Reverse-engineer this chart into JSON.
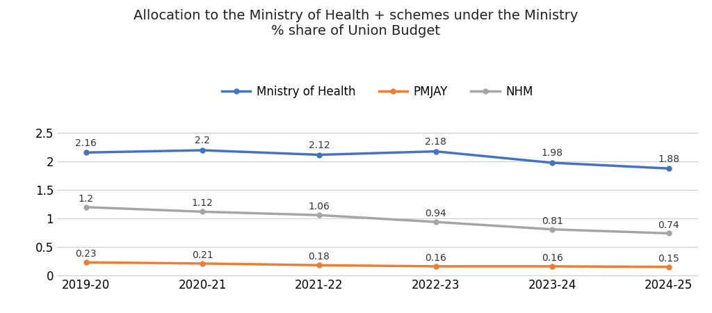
{
  "title_line1": "Allocation to the Ministry of Health + schemes under the Ministry",
  "title_line2": "% share of Union Budget",
  "categories": [
    "2019-20",
    "2020-21",
    "2021-22",
    "2022-23",
    "2023-24",
    "2024-25"
  ],
  "series": [
    {
      "label": "Mnistry of Health",
      "values": [
        2.16,
        2.2,
        2.12,
        2.18,
        1.98,
        1.88
      ],
      "color": "#4472C4",
      "linewidth": 2.5,
      "marker": "o",
      "markersize": 5
    },
    {
      "label": "PMJAY",
      "values": [
        0.23,
        0.21,
        0.18,
        0.16,
        0.16,
        0.15
      ],
      "color": "#ED7D31",
      "linewidth": 2.5,
      "marker": "o",
      "markersize": 5
    },
    {
      "label": "NHM",
      "values": [
        1.2,
        1.12,
        1.06,
        0.94,
        0.81,
        0.74
      ],
      "color": "#A5A5A5",
      "linewidth": 2.5,
      "marker": "o",
      "markersize": 5
    }
  ],
  "ylim": [
    0,
    2.75
  ],
  "yticks": [
    0,
    0.5,
    1.0,
    1.5,
    2.0,
    2.5
  ],
  "background_color": "#FFFFFF",
  "grid_color": "#CCCCCC",
  "tick_fontsize": 12,
  "title_fontsize": 14,
  "legend_fontsize": 12,
  "annotation_fontsize": 10,
  "annotation_offsets": {
    "Mnistry of Health": 0.08,
    "PMJAY": 0.06,
    "NHM": 0.06
  }
}
